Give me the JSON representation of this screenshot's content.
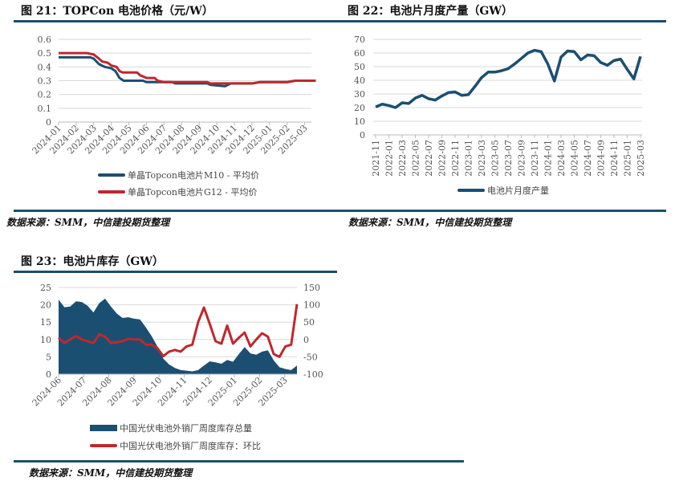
{
  "colors": {
    "blue": "#1b4f72",
    "red": "#c0272d",
    "rule": "#1c4e6e",
    "grid": "#d9d9d9"
  },
  "figures": [
    {
      "title": "图 21：TOPCon 电池价格（元/W）",
      "source": "数据来源：SMM，中信建投期货整理",
      "legend": [
        "单晶Topcon电池片M10 - 平均价",
        "单晶Topcon电池片G12 - 平均价"
      ]
    },
    {
      "title": "图 22：电池片月度产量（GW）",
      "source": "数据来源：SMM，中信建投期货整理",
      "legend": [
        "电池片月度产量"
      ]
    },
    {
      "title": "图 23：电池片库存（GW）",
      "source": "数据来源：SMM，中信建投期货整理",
      "legend": [
        "中国光伏电池外销厂周度库存总量",
        "中国光伏电池外销厂周度库存：环比"
      ]
    }
  ],
  "chart_data": [
    {
      "type": "line",
      "title": "图 21：TOPCon 电池价格（元/W）",
      "ylim": [
        0,
        0.6
      ],
      "yticks": [
        "0",
        "0.1",
        "0.2",
        "0.3",
        "0.4",
        "0.5",
        "0.6"
      ],
      "xticks": [
        "2024-01",
        "2024-02",
        "2024-03",
        "2024-04",
        "2024-05",
        "2024-06",
        "2024-07",
        "2024-08",
        "2024-09",
        "2024-10",
        "2024-11",
        "2024-12",
        "2025-01",
        "2025-02",
        "2025-03"
      ],
      "grid": true,
      "legend_position": "bottom",
      "series": [
        {
          "name": "单晶Topcon电池片M10 - 平均价",
          "color": "#1b4f72",
          "points": [
            [
              "2024-01-01",
              0.47
            ],
            [
              "2024-02-25",
              0.47
            ],
            [
              "2024-03-01",
              0.46
            ],
            [
              "2024-03-10",
              0.42
            ],
            [
              "2024-03-20",
              0.4
            ],
            [
              "2024-04-01",
              0.39
            ],
            [
              "2024-04-08",
              0.37
            ],
            [
              "2024-04-15",
              0.32
            ],
            [
              "2024-04-22",
              0.3
            ],
            [
              "2024-05-25",
              0.3
            ],
            [
              "2024-06-01",
              0.29
            ],
            [
              "2024-07-15",
              0.29
            ],
            [
              "2024-07-20",
              0.28
            ],
            [
              "2024-09-15",
              0.28
            ],
            [
              "2024-09-20",
              0.27
            ],
            [
              "2024-10-15",
              0.26
            ],
            [
              "2024-10-25",
              0.28
            ],
            [
              "2024-12-01",
              0.28
            ],
            [
              "2024-12-15",
              0.29
            ],
            [
              "2025-02-01",
              0.29
            ],
            [
              "2025-02-15",
              0.3
            ],
            [
              "2025-03-20",
              0.3
            ]
          ]
        },
        {
          "name": "单晶Topcon电池片G12 - 平均价",
          "color": "#c0272d",
          "points": [
            [
              "2024-01-01",
              0.5
            ],
            [
              "2024-02-20",
              0.5
            ],
            [
              "2024-03-01",
              0.49
            ],
            [
              "2024-03-10",
              0.46
            ],
            [
              "2024-03-15",
              0.44
            ],
            [
              "2024-03-25",
              0.43
            ],
            [
              "2024-04-01",
              0.41
            ],
            [
              "2024-04-10",
              0.4
            ],
            [
              "2024-04-15",
              0.37
            ],
            [
              "2024-04-20",
              0.36
            ],
            [
              "2024-05-15",
              0.36
            ],
            [
              "2024-05-20",
              0.34
            ],
            [
              "2024-06-01",
              0.32
            ],
            [
              "2024-06-15",
              0.32
            ],
            [
              "2024-06-20",
              0.3
            ],
            [
              "2024-07-01",
              0.29
            ],
            [
              "2024-09-15",
              0.29
            ],
            [
              "2024-09-20",
              0.28
            ],
            [
              "2024-10-20",
              0.28
            ],
            [
              "2024-12-01",
              0.28
            ],
            [
              "2024-12-15",
              0.29
            ],
            [
              "2025-02-01",
              0.29
            ],
            [
              "2025-02-15",
              0.3
            ],
            [
              "2025-03-20",
              0.3
            ]
          ]
        }
      ]
    },
    {
      "type": "line",
      "title": "图 22：电池片月度产量（GW）",
      "ylim": [
        0,
        70
      ],
      "yticks": [
        "0",
        "10",
        "20",
        "30",
        "40",
        "50",
        "60",
        "70"
      ],
      "categories": [
        "2021-11",
        "2021-12",
        "2022-01",
        "2022-02",
        "2022-03",
        "2022-04",
        "2022-05",
        "2022-06",
        "2022-07",
        "2022-08",
        "2022-09",
        "2022-10",
        "2022-11",
        "2022-12",
        "2023-01",
        "2023-02",
        "2023-03",
        "2023-04",
        "2023-05",
        "2023-06",
        "2023-07",
        "2023-08",
        "2023-09",
        "2023-10",
        "2023-11",
        "2023-12",
        "2024-01",
        "2024-02",
        "2024-03",
        "2024-04",
        "2024-05",
        "2024-06",
        "2024-07",
        "2024-08",
        "2024-09",
        "2024-10",
        "2024-11",
        "2024-12",
        "2025-01",
        "2025-02",
        "2025-03"
      ],
      "grid": true,
      "legend_position": "bottom",
      "series": [
        {
          "name": "电池片月度产量",
          "color": "#1b4f72",
          "values": [
            20.5,
            22.5,
            21.5,
            20,
            23.5,
            23,
            27,
            29,
            26.5,
            25.5,
            28.5,
            31,
            31.5,
            29,
            29.5,
            35.5,
            42,
            46,
            46,
            47,
            48.5,
            52,
            56,
            60,
            62,
            61,
            52,
            39.5,
            57,
            61.5,
            61,
            55,
            58.5,
            58,
            53,
            51,
            54.5,
            55.5,
            48,
            41,
            57.5
          ]
        }
      ]
    },
    {
      "type": "area+line",
      "title": "图 23：电池片库存（GW）",
      "ylim": [
        0,
        25
      ],
      "y2lim": [
        -100,
        150
      ],
      "yticks": [
        "0",
        "5",
        "10",
        "15",
        "20",
        "25"
      ],
      "y2ticks": [
        "-100",
        "-50",
        "0",
        "50",
        "100",
        "150"
      ],
      "xticks": [
        "2024-06",
        "2024-07",
        "2024-08",
        "2024-09",
        "2024-10",
        "2024-11",
        "2024-12",
        "2025-01",
        "2025-02",
        "2025-03"
      ],
      "grid": true,
      "legend_position": "bottom",
      "series": [
        {
          "name": "中国光伏电池外销厂周度库存总量",
          "type": "area",
          "axis": "left",
          "color": "#1b4f72",
          "values": [
            21.5,
            19.3,
            19.5,
            21,
            20.8,
            19.7,
            17.8,
            20.5,
            21.8,
            19.5,
            17.5,
            16.2,
            16.4,
            16,
            15.8,
            13.5,
            11,
            8,
            4.5,
            2.8,
            1.8,
            1.2,
            1.0,
            0.8,
            1.2,
            2.5,
            3.7,
            3.4,
            3.0,
            4.1,
            3.6,
            5.8,
            7.8,
            6,
            5.6,
            6.5,
            6.9,
            4,
            2,
            1.5,
            1.2,
            2.5
          ]
        },
        {
          "name": "中国光伏电池外销厂周度库存：环比",
          "type": "line",
          "axis": "right",
          "color": "#c0272d",
          "values": [
            5,
            -10,
            0,
            10,
            0,
            -5,
            -10,
            15,
            8,
            -10,
            -8,
            -5,
            2,
            0,
            0,
            -15,
            -15,
            -25,
            -48,
            -35,
            -30,
            -35,
            -20,
            -15,
            50,
            92,
            45,
            -5,
            -12,
            40,
            -12,
            5,
            20,
            -20,
            0,
            18,
            8,
            -42,
            -50,
            -20,
            -15,
            102
          ]
        }
      ]
    }
  ]
}
